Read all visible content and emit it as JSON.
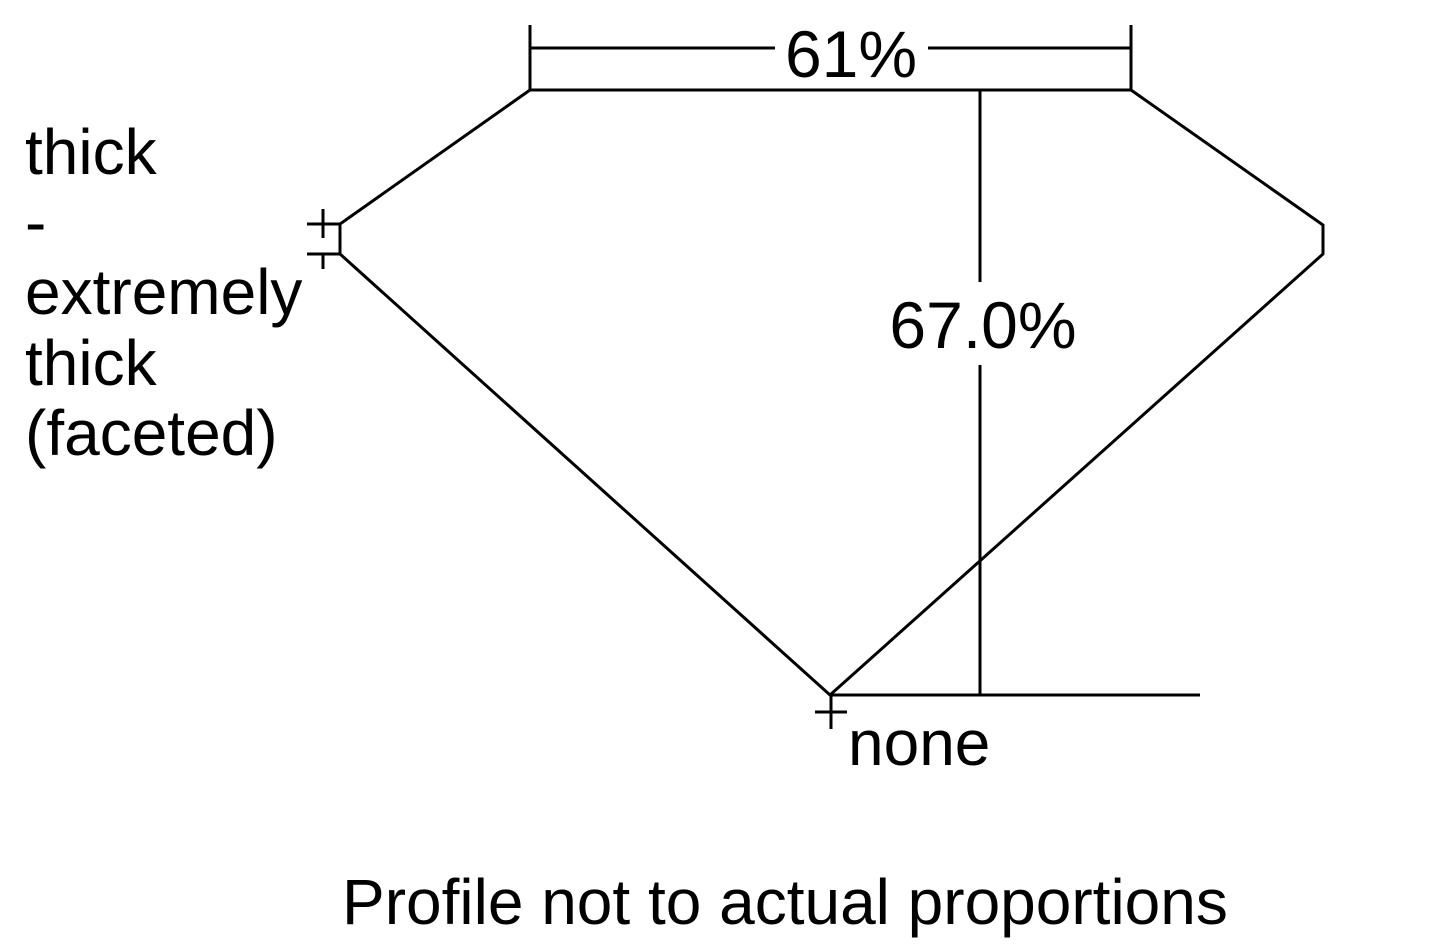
{
  "diagram": {
    "table_percent": "61%",
    "depth_percent": "67.0%",
    "girdle_label_lines": [
      "thick",
      "-",
      "extremely",
      "thick",
      "(faceted)"
    ],
    "culet_label": "none",
    "caption": "Profile not to actual proportions",
    "line_color": "#000000",
    "background": "#ffffff"
  }
}
